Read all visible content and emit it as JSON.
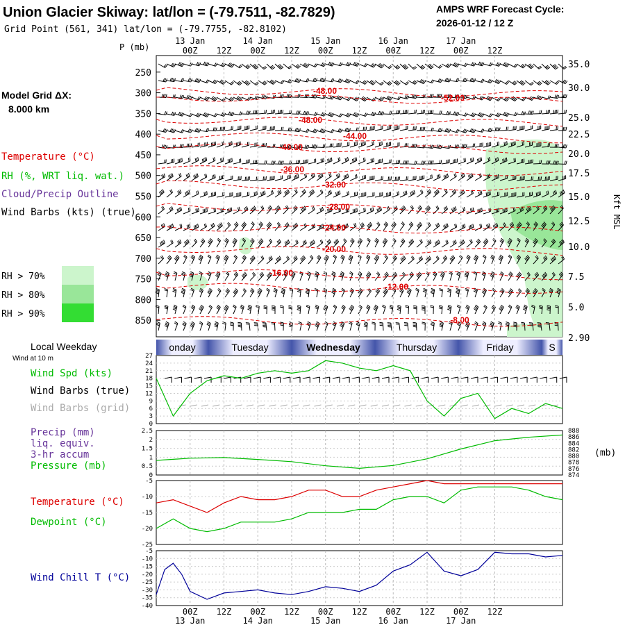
{
  "header": {
    "title": "Union Glacier Skiway:  lat/lon = (-79.7511, -82.7829)",
    "subtitle": "Grid Point (561, 341) lat/lon = (-79.7755, -82.8102)",
    "cycle_label": "AMPS WRF Forecast Cycle:",
    "cycle_value": "2026-01-12 / 12  Z"
  },
  "left_panel": {
    "p_label": "P (mb)",
    "grid_label": "Model Grid ΔX:",
    "grid_value": "8.000 km",
    "temperature_label": "Temperature (°C)",
    "rh_label": "RH (%, WRT liq. wat.)",
    "cloud_label": "Cloud/Precip Outline",
    "wind_label": "Wind Barbs (kts) (true)",
    "rh_legend": [
      {
        "label": "RH > 70%",
        "color": "#ccf5cc"
      },
      {
        "label": "RH > 80%",
        "color": "#99e699"
      },
      {
        "label": "RH > 90%",
        "color": "#33dd33"
      }
    ],
    "kft_label": "Kft MSL"
  },
  "colors": {
    "temperature": "#dd0000",
    "wind_speed": "#00bb00",
    "pressure": "#00bb00",
    "dewpoint": "#00bb00",
    "wind_chill": "#000099",
    "precip_label": "#663399",
    "grid_barbs": "#aaaaaa"
  },
  "time_axis": {
    "top_dates": [
      "13 Jan",
      "14 Jan",
      "15 Jan",
      "16 Jan",
      "17 Jan"
    ],
    "hours": [
      "00Z",
      "12Z",
      "00Z",
      "12Z",
      "00Z",
      "12Z",
      "00Z",
      "12Z",
      "00Z",
      "12Z"
    ],
    "bottom_dates": [
      "13 Jan",
      "14 Jan",
      "15 Jan",
      "16 Jan",
      "17 Jan"
    ]
  },
  "weekday_bar": {
    "label": "Local Weekday",
    "days": [
      "onday",
      "Tuesday",
      "Wednesday",
      "Thursday",
      "Friday",
      "S"
    ]
  },
  "wind_panel": {
    "small_label": "Wind at 10 m",
    "speed_label": "Wind Spd (kts)",
    "barbs_true_label": "Wind Barbs (true)",
    "barbs_grid_label": "Wind Barbs (grid)",
    "yticks": [
      "27",
      "24",
      "21",
      "18",
      "15",
      "12",
      "9",
      "6",
      "3",
      "0"
    ]
  },
  "precip_panel": {
    "precip_label_1": "Precip (mm)",
    "precip_label_2": "liq. equiv.",
    "precip_label_3": "3-hr accum",
    "pressure_label": "Pressure (mb)",
    "left_ticks": [
      "2.5",
      "2",
      "1.5",
      "1",
      "0.5",
      "0"
    ],
    "right_ticks": [
      "888",
      "886",
      "884",
      "882",
      "880",
      "878",
      "876",
      "874"
    ],
    "unit": "(mb)"
  },
  "temp_panel": {
    "temp_label": "Temperature (°C)",
    "dew_label": "Dewpoint (°C)",
    "yticks": [
      "-5",
      "-10",
      "-15",
      "-20",
      "-25"
    ]
  },
  "chill_panel": {
    "label": "Wind Chill T (°C)",
    "yticks": [
      "-5",
      "-10",
      "-15",
      "-20",
      "-25",
      "-30",
      "-35",
      "-40"
    ]
  },
  "chart_data": [
    {
      "type": "line",
      "name": "cross-section",
      "ylabel": "P (mb)",
      "y_ticks": [
        250,
        300,
        350,
        400,
        450,
        500,
        550,
        600,
        650,
        700,
        750,
        800,
        850
      ],
      "kft_ticks": [
        "35.0",
        "30.0",
        "25.0",
        "22.5",
        "20.0",
        "17.5",
        "15.0",
        "12.5",
        "10.0",
        "7.5",
        "5.0",
        "2.90"
      ],
      "isotherm_labels": [
        "-48.00",
        "-52.00",
        "-48.00",
        "-44.00",
        "-40.00",
        "-36.00",
        "-32.00",
        "-28.00",
        "-24.00",
        "-20.00",
        "-16.00",
        "-12.00",
        "-8.00"
      ]
    },
    {
      "type": "line",
      "name": "wind speed",
      "x_hours": [
        0,
        6,
        12,
        18,
        24,
        30,
        36,
        42,
        48,
        54,
        60,
        66,
        72,
        78,
        84,
        90,
        96,
        102,
        108,
        114,
        120,
        126,
        132,
        138,
        144
      ],
      "values": [
        18,
        3,
        12,
        17,
        19,
        18,
        20,
        21,
        20,
        21,
        25,
        24,
        22,
        21,
        23,
        21,
        9,
        3,
        10,
        12,
        2,
        6,
        4,
        8,
        6
      ],
      "ylim": [
        0,
        27
      ]
    },
    {
      "type": "line",
      "name": "pressure",
      "x_hours": [
        0,
        12,
        24,
        36,
        48,
        60,
        72,
        84,
        96,
        108,
        120,
        132,
        144
      ],
      "values": [
        878.6,
        879.3,
        879.5,
        878.9,
        878.2,
        876.9,
        876.1,
        877.0,
        879.1,
        882.2,
        884.8,
        885.9,
        886.6
      ],
      "ylim": [
        874,
        888
      ]
    },
    {
      "type": "line",
      "name": "temperature",
      "x_hours": [
        0,
        6,
        12,
        18,
        24,
        30,
        36,
        42,
        48,
        54,
        60,
        66,
        72,
        78,
        84,
        90,
        96,
        102,
        108,
        114,
        120,
        126,
        132,
        138,
        144
      ],
      "values": [
        -12,
        -11,
        -13,
        -15,
        -12,
        -10,
        -11,
        -11,
        -10,
        -8,
        -8,
        -10,
        -10,
        -8,
        -7,
        -6,
        -5,
        -6,
        -6,
        -6,
        -6,
        -6,
        -6,
        -6,
        -6
      ],
      "ylim": [
        -25,
        -5
      ]
    },
    {
      "type": "line",
      "name": "dewpoint",
      "x_hours": [
        0,
        6,
        12,
        18,
        24,
        30,
        36,
        42,
        48,
        54,
        60,
        66,
        72,
        78,
        84,
        90,
        96,
        102,
        108,
        114,
        120,
        126,
        132,
        138,
        144
      ],
      "values": [
        -20,
        -17,
        -20,
        -21,
        -20,
        -18,
        -18,
        -18,
        -17,
        -15,
        -15,
        -15,
        -14,
        -14,
        -11,
        -10,
        -10,
        -12,
        -8,
        -7,
        -7,
        -7,
        -8,
        -10,
        -11
      ],
      "ylim": [
        -25,
        -5
      ]
    },
    {
      "type": "line",
      "name": "wind chill",
      "x_hours": [
        0,
        3,
        6,
        9,
        12,
        18,
        24,
        30,
        36,
        42,
        48,
        54,
        60,
        66,
        72,
        78,
        84,
        90,
        96,
        102,
        108,
        114,
        120,
        126,
        132,
        138,
        144
      ],
      "values": [
        -33,
        -17,
        -13,
        -20,
        -31,
        -36,
        -32,
        -31,
        -30,
        -32,
        -33,
        -31,
        -28,
        -29,
        -31,
        -27,
        -18,
        -14,
        -6,
        -18,
        -21,
        -17,
        -6,
        -7,
        -7,
        -9,
        -8
      ],
      "ylim": [
        -40,
        -5
      ]
    }
  ]
}
